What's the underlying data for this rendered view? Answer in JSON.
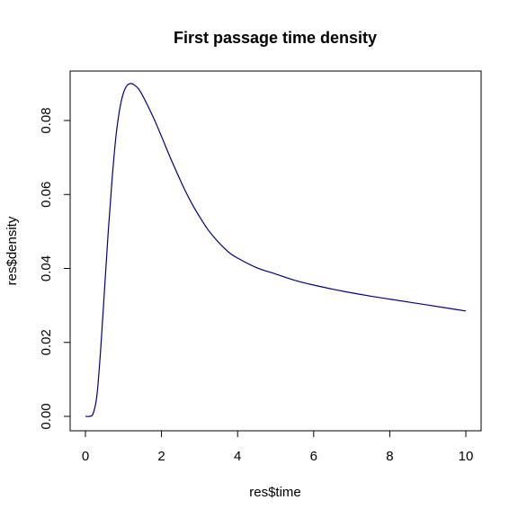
{
  "chart_data": {
    "type": "line",
    "title": "First passage time density",
    "xlabel": "res$time",
    "ylabel": "res$density",
    "xlim": [
      0,
      10
    ],
    "ylim": [
      0,
      0.09
    ],
    "x_ticks": [
      0,
      2,
      4,
      6,
      8,
      10
    ],
    "x_tick_labels": [
      "0",
      "2",
      "4",
      "6",
      "8",
      "10"
    ],
    "y_ticks": [
      0,
      0.02,
      0.04,
      0.06,
      0.08
    ],
    "y_tick_labels": [
      "0.00",
      "0.02",
      "0.04",
      "0.06",
      "0.08"
    ],
    "grid": false,
    "legend": "none",
    "line_color": "#000080",
    "series": [
      {
        "x": [
          0.0,
          0.1,
          0.2,
          0.3,
          0.4,
          0.5,
          0.6,
          0.7,
          0.8,
          0.9,
          1.0,
          1.1,
          1.2,
          1.3,
          1.4,
          1.5,
          1.6,
          1.8,
          2.0,
          2.2,
          2.4,
          2.6,
          2.8,
          3.0,
          3.2,
          3.4,
          3.6,
          3.8,
          4.0,
          4.5,
          5.0,
          5.5,
          6.0,
          6.5,
          7.0,
          7.5,
          8.0,
          8.5,
          9.0,
          9.5,
          10.0
        ],
        "values": [
          0.0,
          0.0,
          0.0007,
          0.0055,
          0.018,
          0.034,
          0.05,
          0.064,
          0.0755,
          0.083,
          0.0875,
          0.0895,
          0.09,
          0.0895,
          0.0885,
          0.0868,
          0.0848,
          0.0805,
          0.0757,
          0.0707,
          0.066,
          0.0615,
          0.0575,
          0.054,
          0.0508,
          0.0482,
          0.046,
          0.0441,
          0.0428,
          0.0402,
          0.0385,
          0.0368,
          0.0355,
          0.0344,
          0.0334,
          0.0325,
          0.0317,
          0.0309,
          0.0301,
          0.0293,
          0.0285
        ]
      }
    ]
  }
}
